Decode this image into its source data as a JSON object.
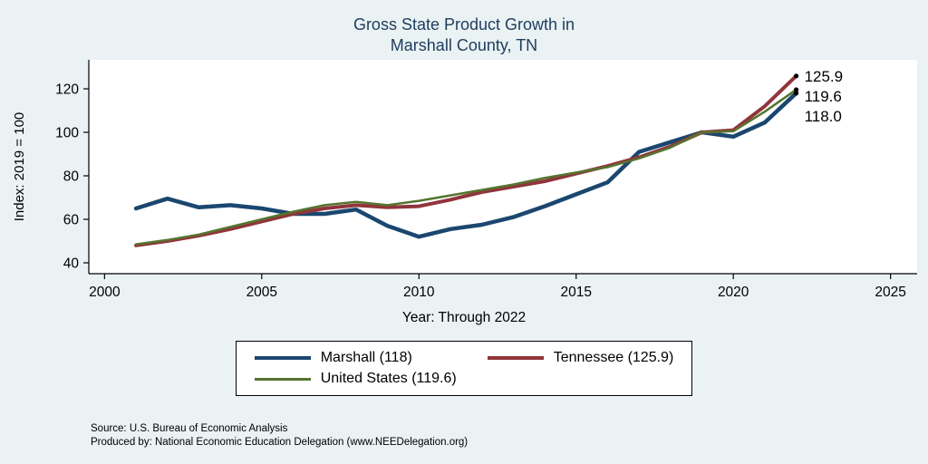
{
  "title": {
    "line1": "Gross State Product Growth in",
    "line2": "Marshall County, TN"
  },
  "colors": {
    "background": "#eaf2f3",
    "plot_background": "#ffffff",
    "title_text": "#1e3c5e",
    "axis": "#000000"
  },
  "chart_data": {
    "type": "line",
    "title": "Gross State Product Growth in Marshall County, TN",
    "xlabel": "Year: Through 2022",
    "ylabel": "Index: 2019 = 100",
    "xlim": [
      1999.5,
      2025.5
    ],
    "ylim": [
      35,
      130
    ],
    "x_ticks": [
      2000,
      2005,
      2010,
      2015,
      2020,
      2025
    ],
    "y_ticks": [
      40,
      60,
      80,
      100,
      120
    ],
    "grid": false,
    "legend_position": "bottom",
    "x": [
      2001,
      2002,
      2003,
      2004,
      2005,
      2006,
      2007,
      2008,
      2009,
      2010,
      2011,
      2012,
      2013,
      2014,
      2015,
      2016,
      2017,
      2018,
      2019,
      2020,
      2021,
      2022
    ],
    "series": [
      {
        "name": "Marshall",
        "legend_label": "Marshall  (118)",
        "end_label": "118.0",
        "color": "#1a476f",
        "line_width": 4.5,
        "values": [
          65,
          69.5,
          65.5,
          66.5,
          65,
          62.5,
          62.5,
          64.5,
          57,
          52,
          55.5,
          57.5,
          61,
          66,
          71.5,
          77,
          91,
          95.5,
          100,
          98,
          104.5,
          118
        ]
      },
      {
        "name": "Tennessee",
        "legend_label": "Tennessee (125.9)",
        "end_label": "125.9",
        "color": "#90353b",
        "line_width": 4,
        "values": [
          48,
          50,
          52.5,
          55.5,
          59,
          62.5,
          65,
          66.5,
          65.5,
          66,
          69,
          72.5,
          75,
          77.5,
          81,
          84.5,
          88.5,
          93.5,
          100,
          101,
          112,
          125.9
        ]
      },
      {
        "name": "United States",
        "legend_label": "United States (119.6)",
        "end_label": "119.6",
        "color": "#55752f",
        "line_width": 2.5,
        "values": [
          48.5,
          50.5,
          53,
          56.5,
          60,
          63.5,
          66.5,
          68,
          66.5,
          68.5,
          71,
          73.5,
          76,
          79,
          81.5,
          84,
          88,
          93,
          100,
          100.5,
          109.5,
          119.6
        ]
      }
    ]
  },
  "source": {
    "line1": "Source: U.S. Bureau of Economic Analysis",
    "line2": "Produced by: National Economic Education Delegation (www.NEEDelegation.org)"
  }
}
